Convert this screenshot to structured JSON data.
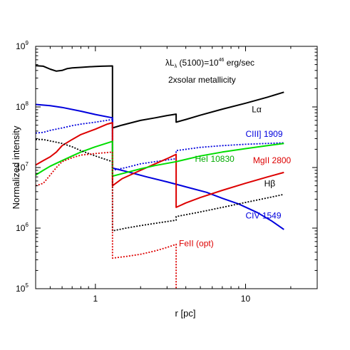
{
  "chart_data": {
    "type": "line",
    "x_scale": "log",
    "y_scale": "log",
    "xlim": [
      0.4,
      30
    ],
    "ylim": [
      100000,
      1000000000
    ],
    "xlabel": "r [pc]",
    "ylabel": "Normalized intensity",
    "x_ticks": [
      {
        "value": 1,
        "label": "1"
      },
      {
        "value": 10,
        "label": "10"
      }
    ],
    "y_ticks": [
      {
        "value": 100000,
        "base": "10",
        "exp": "5"
      },
      {
        "value": 1000000,
        "base": "10",
        "exp": "6"
      },
      {
        "value": 10000000,
        "base": "10",
        "exp": "7"
      },
      {
        "value": 100000000,
        "base": "10",
        "exp": "8"
      },
      {
        "value": 1000000000,
        "base": "10",
        "exp": "9"
      }
    ],
    "annotations": {
      "line1_prefix": "λL",
      "line1_sub": "λ",
      "line1_mid": " (5100)=10",
      "line1_sup": "46",
      "line1_suffix": " erg/sec",
      "line2": "2xsolar metallicity"
    },
    "grid": false,
    "series": [
      {
        "name": "Lα",
        "color": "#000000",
        "dash": "solid",
        "points": [
          [
            0.4,
            480000000
          ],
          [
            0.45,
            470000000
          ],
          [
            0.5,
            420000000
          ],
          [
            0.55,
            390000000
          ],
          [
            0.6,
            400000000
          ],
          [
            0.65,
            430000000
          ],
          [
            0.7,
            440000000
          ],
          [
            0.8,
            450000000
          ],
          [
            0.9,
            460000000
          ],
          [
            1.0,
            465000000
          ],
          [
            1.1,
            470000000
          ],
          [
            1.3,
            475000000
          ],
          [
            1.3,
            45000000
          ],
          [
            1.5,
            50000000
          ],
          [
            2.0,
            60000000
          ],
          [
            2.5,
            66000000
          ],
          [
            3.0,
            72000000
          ],
          [
            3.45,
            76000000
          ],
          [
            3.45,
            56000000
          ],
          [
            4,
            62000000
          ],
          [
            5,
            73000000
          ],
          [
            7,
            92000000
          ],
          [
            10,
            115000000
          ],
          [
            14,
            145000000
          ],
          [
            18,
            175000000
          ]
        ]
      },
      {
        "name": "CIII] 1909",
        "color": "#0000dd",
        "dash": "dotted",
        "points": [
          [
            0.4,
            37000000
          ],
          [
            0.45,
            38000000
          ],
          [
            0.5,
            41000000
          ],
          [
            0.6,
            45000000
          ],
          [
            0.7,
            49000000
          ],
          [
            0.8,
            52000000
          ],
          [
            1.0,
            56000000
          ],
          [
            1.3,
            62000000
          ],
          [
            1.3,
            9000000
          ],
          [
            1.6,
            10000000
          ],
          [
            2.0,
            11500000
          ],
          [
            2.5,
            12500000
          ],
          [
            3.45,
            14000000
          ],
          [
            3.45,
            19000000
          ],
          [
            5,
            21500000
          ],
          [
            7,
            23000000
          ],
          [
            10,
            24200000
          ],
          [
            14,
            25000000
          ],
          [
            18,
            25500000
          ]
        ]
      },
      {
        "name": "CIV 1549",
        "color": "#0000dd",
        "dash": "solid",
        "points": [
          [
            0.4,
            110000000
          ],
          [
            0.5,
            105000000
          ],
          [
            0.6,
            98000000
          ],
          [
            0.8,
            85000000
          ],
          [
            1.0,
            75000000
          ],
          [
            1.3,
            66000000
          ],
          [
            1.3,
            9800000
          ],
          [
            1.7,
            8300000
          ],
          [
            2.2,
            7000000
          ],
          [
            3,
            5800000
          ],
          [
            4,
            4800000
          ],
          [
            5.5,
            3900000
          ],
          [
            7,
            3100000
          ],
          [
            9,
            2500000
          ],
          [
            12,
            1800000
          ],
          [
            15,
            1300000
          ],
          [
            18,
            950000
          ]
        ]
      },
      {
        "name": "MgII 2800",
        "color": "#dd0000",
        "dash": "solid",
        "points": [
          [
            0.4,
            11000000
          ],
          [
            0.45,
            13000000
          ],
          [
            0.5,
            15000000
          ],
          [
            0.55,
            18000000
          ],
          [
            0.6,
            23000000
          ],
          [
            0.7,
            29000000
          ],
          [
            0.8,
            35000000
          ],
          [
            1.0,
            43000000
          ],
          [
            1.2,
            52000000
          ],
          [
            1.3,
            55000000
          ],
          [
            1.3,
            5000000
          ],
          [
            1.5,
            6500000
          ],
          [
            2.0,
            9000000
          ],
          [
            2.5,
            11500000
          ],
          [
            3.0,
            14000000
          ],
          [
            3.45,
            16500000
          ],
          [
            3.45,
            2200000
          ],
          [
            4,
            2600000
          ],
          [
            5,
            3200000
          ],
          [
            7,
            4200000
          ],
          [
            10,
            5500000
          ],
          [
            14,
            7000000
          ],
          [
            18,
            8300000
          ]
        ]
      },
      {
        "name": "HeI 10830",
        "color": "#00dd00",
        "dash": "solid",
        "points": [
          [
            0.4,
            7500000
          ],
          [
            0.45,
            9000000
          ],
          [
            0.5,
            10500000
          ],
          [
            0.6,
            13000000
          ],
          [
            0.7,
            15500000
          ],
          [
            0.8,
            18000000
          ],
          [
            1.0,
            22000000
          ],
          [
            1.3,
            27000000
          ],
          [
            1.3,
            7200000
          ],
          [
            1.5,
            7900000
          ],
          [
            2.0,
            9500000
          ],
          [
            2.5,
            10800000
          ],
          [
            3.45,
            12500000
          ],
          [
            5,
            15500000
          ],
          [
            7,
            18000000
          ],
          [
            10,
            20500000
          ],
          [
            14,
            23000000
          ],
          [
            18,
            25000000
          ]
        ]
      },
      {
        "name": "Hβ",
        "color": "#000000",
        "dash": "dotted",
        "points": [
          [
            0.4,
            29000000
          ],
          [
            0.45,
            29000000
          ],
          [
            0.5,
            27500000
          ],
          [
            0.6,
            25000000
          ],
          [
            0.7,
            22000000
          ],
          [
            0.8,
            19000000
          ],
          [
            1.0,
            15500000
          ],
          [
            1.3,
            12500000
          ],
          [
            1.3,
            900000
          ],
          [
            1.6,
            1000000
          ],
          [
            2.0,
            1100000
          ],
          [
            2.5,
            1200000
          ],
          [
            3.45,
            1350000
          ],
          [
            3.45,
            1550000
          ],
          [
            5,
            1850000
          ],
          [
            7,
            2200000
          ],
          [
            10,
            2650000
          ],
          [
            14,
            3150000
          ],
          [
            18,
            3600000
          ]
        ]
      },
      {
        "name": "FeII (opt)",
        "color": "#dd0000",
        "dash": "dotted",
        "points": [
          [
            0.4,
            5000000
          ],
          [
            0.45,
            5500000
          ],
          [
            0.5,
            7500000
          ],
          [
            0.55,
            10000000
          ],
          [
            0.6,
            12500000
          ],
          [
            0.7,
            14500000
          ],
          [
            0.8,
            16000000
          ],
          [
            1.0,
            17000000
          ],
          [
            1.3,
            18000000
          ],
          [
            1.3,
            320000
          ],
          [
            1.6,
            340000
          ],
          [
            2.0,
            370000
          ],
          [
            2.5,
            420000
          ],
          [
            3.0,
            480000
          ],
          [
            3.45,
            540000
          ],
          [
            3.45,
            100000
          ]
        ]
      }
    ],
    "labels": [
      {
        "series": "Lα",
        "text": "Lα",
        "color": "#000000",
        "x": 11.0,
        "y": 82000000
      },
      {
        "series": "CIII] 1909",
        "text": "CIII] 1909",
        "color": "#0000dd",
        "x": 10.0,
        "y": 32000000
      },
      {
        "series": "HeI 10830",
        "text": "HeI 10830",
        "color": "#00aa00",
        "x": 4.6,
        "y": 12500000
      },
      {
        "series": "MgII 2800",
        "text": "MgII 2800",
        "color": "#dd0000",
        "x": 11.2,
        "y": 11800000
      },
      {
        "series": "Hβ",
        "text": "Hβ",
        "color": "#000000",
        "x": 13.3,
        "y": 4900000
      },
      {
        "series": "CIV 1549",
        "text": "CIV 1549",
        "color": "#0000dd",
        "x": 10.0,
        "y": 1450000
      },
      {
        "series": "FeII (opt)",
        "text": "FeII (opt)",
        "color": "#dd0000",
        "x": 3.6,
        "y": 500000
      }
    ]
  }
}
